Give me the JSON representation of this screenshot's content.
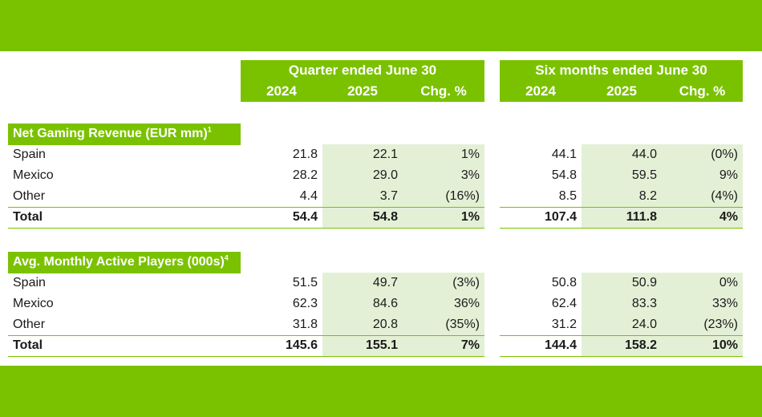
{
  "headers": {
    "quarter_group": "Quarter ended June 30",
    "six_months_group": "Six months ended June 30",
    "col_2024": "2024",
    "col_2025": "2025",
    "col_chg": "Chg. %"
  },
  "sections": [
    {
      "title": "Net Gaming Revenue (EUR mm)",
      "footnote": "1",
      "rows": [
        {
          "label": "Spain",
          "q2024": "21.8",
          "q2025": "22.1",
          "qchg": "1%",
          "h2024": "44.1",
          "h2025": "44.0",
          "hchg": "(0%)"
        },
        {
          "label": "Mexico",
          "q2024": "28.2",
          "q2025": "29.0",
          "qchg": "3%",
          "h2024": "54.8",
          "h2025": "59.5",
          "hchg": "9%"
        },
        {
          "label": "Other",
          "q2024": "4.4",
          "q2025": "3.7",
          "qchg": "(16%)",
          "h2024": "8.5",
          "h2025": "8.2",
          "hchg": "(4%)"
        },
        {
          "label": "Total",
          "q2024": "54.4",
          "q2025": "54.8",
          "qchg": "1%",
          "h2024": "107.4",
          "h2025": "111.8",
          "hchg": "4%"
        }
      ]
    },
    {
      "title": "Avg. Monthly Active Players (000s)",
      "footnote": "4",
      "rows": [
        {
          "label": "Spain",
          "q2024": "51.5",
          "q2025": "49.7",
          "qchg": "(3%)",
          "h2024": "50.8",
          "h2025": "50.9",
          "hchg": "0%"
        },
        {
          "label": "Mexico",
          "q2024": "62.3",
          "q2025": "84.6",
          "qchg": "36%",
          "h2024": "62.4",
          "h2025": "83.3",
          "hchg": "33%"
        },
        {
          "label": "Other",
          "q2024": "31.8",
          "q2025": "20.8",
          "qchg": "(35%)",
          "h2024": "31.2",
          "h2025": "24.0",
          "hchg": "(23%)"
        },
        {
          "label": "Total",
          "q2024": "145.6",
          "q2025": "155.1",
          "qchg": "7%",
          "h2024": "144.4",
          "h2025": "158.2",
          "hchg": "10%"
        }
      ]
    }
  ]
}
